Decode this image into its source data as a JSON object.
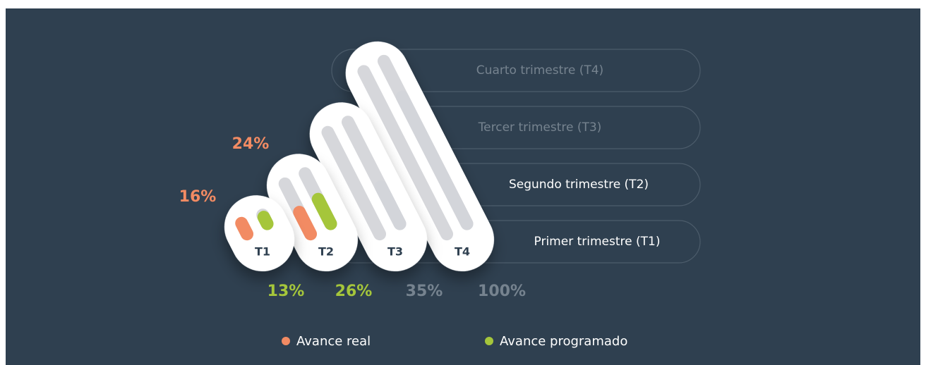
{
  "chart_data": {
    "type": "slanted-pill-bar",
    "categories": [
      "T1",
      "T2",
      "T3",
      "T4"
    ],
    "row_labels": [
      "Primer trimestre (T1)",
      "Segundo trimestre (T2)",
      "Tercer trimestre (T3)",
      "Cuarto trimestre (T4)"
    ],
    "series": [
      {
        "name": "Avance real",
        "color": "#f28b63",
        "colors": [
          "#f28b63",
          "#f28b63",
          null,
          null
        ],
        "label_colors": [
          "#f28b63",
          "#f28b63",
          null,
          null
        ],
        "values": [
          16,
          24,
          null,
          null
        ],
        "value_labels": [
          "16%",
          "24%",
          null,
          null
        ]
      },
      {
        "name": "Avance programado",
        "color": "#a5c63b",
        "colors": [
          "#a5c63b",
          "#a5c63b",
          "#d3d5da",
          "#d3d5da"
        ],
        "label_colors": [
          "#a5c63b",
          "#a5c63b",
          "#76838f",
          "#76838f"
        ],
        "values": [
          13,
          26,
          35,
          100
        ],
        "value_labels": [
          "13%",
          "26%",
          "35%",
          "100%"
        ]
      }
    ]
  }
}
